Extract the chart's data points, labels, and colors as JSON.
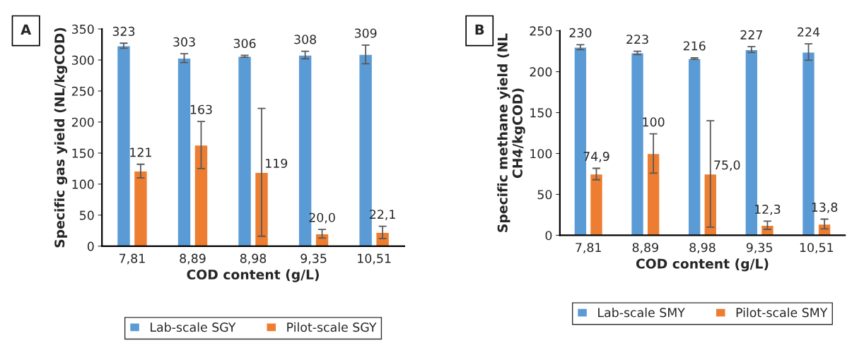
{
  "chart_data": [
    {
      "type": "bar",
      "xlabel": "COD content (g/L)",
      "ylabel": "Specific gas yield (NL/kgCOD)",
      "annotations": [
        "A"
      ],
      "categories": [
        "7,81",
        "8,89",
        "8,98",
        "9,35",
        "10,51"
      ],
      "ylim": [
        0,
        350
      ],
      "yticks": [
        0,
        50,
        100,
        150,
        200,
        250,
        300,
        350
      ],
      "grid": false,
      "legend": "bottom",
      "series": [
        {
          "name": "Lab-scale SGY",
          "color": "#5b9bd5",
          "values": [
            323,
            303,
            306,
            308,
            309
          ],
          "errors": [
            4,
            7,
            1.5,
            6,
            15
          ],
          "value_labels": [
            "323",
            "303",
            "306",
            "308",
            "309"
          ]
        },
        {
          "name": "Pilot-scale SGY",
          "color": "#ed7d31",
          "values": [
            121,
            163,
            119,
            20.0,
            22.1
          ],
          "errors": [
            11,
            38,
            103,
            7,
            10
          ],
          "value_labels": [
            "121",
            "163",
            "119",
            "20,0",
            "22,1"
          ]
        }
      ]
    },
    {
      "type": "bar",
      "xlabel": "COD content (g/L)",
      "ylabel": "Specific methane yield (NL CH4/kgCOD)",
      "annotations": [
        "B"
      ],
      "categories": [
        "7,81",
        "8,89",
        "8,98",
        "9,35",
        "10,51"
      ],
      "ylim": [
        0,
        250
      ],
      "yticks": [
        0,
        50,
        100,
        150,
        200,
        250
      ],
      "grid": false,
      "legend": "bottom",
      "series": [
        {
          "name": "Lab-scale SMY",
          "color": "#5b9bd5",
          "values": [
            230,
            223,
            216,
            227,
            224
          ],
          "errors": [
            3,
            2,
            1,
            3.5,
            10
          ],
          "value_labels": [
            "230",
            "223",
            "216",
            "227",
            "224"
          ]
        },
        {
          "name": "Pilot-scale SMY",
          "color": "#ed7d31",
          "values": [
            74.9,
            100,
            75.0,
            12.3,
            13.8
          ],
          "errors": [
            7,
            24,
            65,
            5,
            6
          ],
          "value_labels": [
            "74,9",
            "100",
            "75,0",
            "12,3",
            "13,8"
          ]
        }
      ]
    }
  ]
}
